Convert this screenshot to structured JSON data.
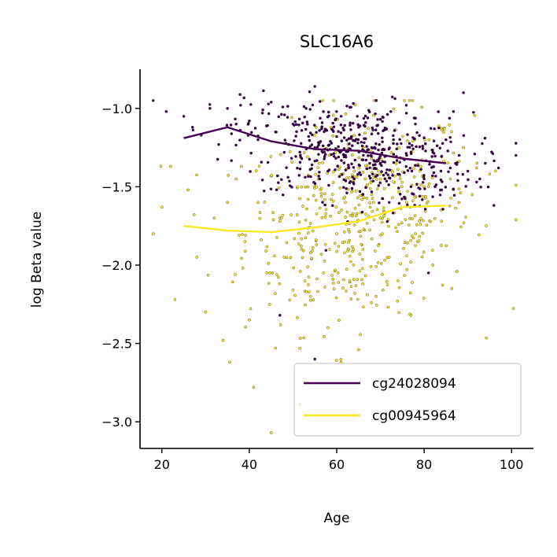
{
  "chart_data": {
    "type": "scatter",
    "title": "SLC16A6",
    "xlabel": "Age",
    "ylabel": "log Beta value",
    "xlim": [
      15,
      105
    ],
    "ylim": [
      -3.17,
      -0.75
    ],
    "xticks": [
      20,
      40,
      60,
      80,
      100
    ],
    "yticks": [
      -3.0,
      -2.5,
      -2.0,
      -1.5,
      -1.0
    ],
    "xtick_labels": [
      "20",
      "40",
      "60",
      "80",
      "100"
    ],
    "ytick_labels": [
      "−3.0",
      "−2.5",
      "−2.0",
      "−1.5",
      "−1.0"
    ],
    "grid": false,
    "legend_position": "lower-right",
    "series": [
      {
        "name": "cg24028094",
        "color": "#440154",
        "point_summary": {
          "count_approx": 480,
          "x_range": [
            18,
            101
          ],
          "y_range": [
            -2.6,
            -0.85
          ],
          "y_center_approx": -1.3
        },
        "points_sample": [
          [
            18,
            -0.95
          ],
          [
            21,
            -1.02
          ],
          [
            25,
            -1.05
          ],
          [
            27,
            -1.12
          ],
          [
            29,
            -1.17
          ],
          [
            31,
            -1.0
          ],
          [
            33,
            -1.23
          ],
          [
            35,
            -1.0
          ],
          [
            37,
            -1.1
          ],
          [
            38,
            -0.98
          ],
          [
            40,
            -1.08
          ],
          [
            42,
            -1.2
          ],
          [
            43,
            -1.03
          ],
          [
            45,
            -0.96
          ],
          [
            46,
            -1.15
          ],
          [
            48,
            -1.28
          ],
          [
            50,
            -1.1
          ],
          [
            52,
            -1.32
          ],
          [
            53,
            -1.0
          ],
          [
            55,
            -0.86
          ],
          [
            56,
            -1.22
          ],
          [
            58,
            -1.4
          ],
          [
            60,
            -1.18
          ],
          [
            61,
            -1.05
          ],
          [
            62,
            -1.3
          ],
          [
            64,
            -1.45
          ],
          [
            65,
            -1.12
          ],
          [
            66,
            -1.55
          ],
          [
            68,
            -1.25
          ],
          [
            69,
            -0.95
          ],
          [
            70,
            -1.35
          ],
          [
            72,
            -1.6
          ],
          [
            73,
            -1.2
          ],
          [
            74,
            -1.42
          ],
          [
            76,
            -1.3
          ],
          [
            77,
            -1.5
          ],
          [
            78,
            -1.1
          ],
          [
            80,
            -1.45
          ],
          [
            81,
            -2.05
          ],
          [
            82,
            -1.28
          ],
          [
            84,
            -1.52
          ],
          [
            85,
            -1.2
          ],
          [
            86,
            -1.38
          ],
          [
            88,
            -1.3
          ],
          [
            89,
            -0.9
          ],
          [
            90,
            -1.4
          ],
          [
            92,
            -1.47
          ],
          [
            94,
            -1.35
          ],
          [
            97,
            -1.38
          ],
          [
            101,
            -1.3
          ],
          [
            55,
            -2.6
          ],
          [
            47,
            -2.32
          ]
        ],
        "trend": {
          "x": [
            25,
            35,
            45,
            55,
            65,
            75,
            85
          ],
          "y": [
            -1.19,
            -1.12,
            -1.21,
            -1.26,
            -1.27,
            -1.32,
            -1.35
          ]
        }
      },
      {
        "name": "cg00945964",
        "color": "#fde725",
        "point_summary": {
          "count_approx": 480,
          "x_range": [
            18,
            101
          ],
          "y_range": [
            -3.07,
            -0.95
          ],
          "y_center_approx": -1.75
        },
        "points_sample": [
          [
            18,
            -1.8
          ],
          [
            20,
            -1.63
          ],
          [
            22,
            -1.37
          ],
          [
            23,
            -2.22
          ],
          [
            26,
            -1.52
          ],
          [
            28,
            -1.95
          ],
          [
            30,
            -2.3
          ],
          [
            32,
            -1.7
          ],
          [
            34,
            -2.48
          ],
          [
            35,
            -1.6
          ],
          [
            37,
            -1.45
          ],
          [
            39,
            -1.85
          ],
          [
            40,
            -2.35
          ],
          [
            41,
            -2.78
          ],
          [
            42,
            -1.6
          ],
          [
            44,
            -2.05
          ],
          [
            45,
            -3.07
          ],
          [
            46,
            -2.53
          ],
          [
            47,
            -1.72
          ],
          [
            48,
            -1.95
          ],
          [
            50,
            -2.16
          ],
          [
            51,
            -1.5
          ],
          [
            52,
            -1.9
          ],
          [
            54,
            -2.2
          ],
          [
            56,
            -1.35
          ],
          [
            57,
            -2.05
          ],
          [
            58,
            -2.4
          ],
          [
            60,
            -1.8
          ],
          [
            61,
            -2.62
          ],
          [
            62,
            -1.6
          ],
          [
            63,
            -2.1
          ],
          [
            64,
            -1.4
          ],
          [
            65,
            -2.54
          ],
          [
            66,
            -1.9
          ],
          [
            68,
            -1.55
          ],
          [
            69,
            -2.2
          ],
          [
            70,
            -1.7
          ],
          [
            72,
            -1.95
          ],
          [
            73,
            -1.3
          ],
          [
            74,
            -2.1
          ],
          [
            76,
            -1.6
          ],
          [
            77,
            -2.32
          ],
          [
            78,
            -1.8
          ],
          [
            80,
            -1.5
          ],
          [
            82,
            -2.0
          ],
          [
            84,
            -1.72
          ],
          [
            86,
            -1.45
          ],
          [
            88,
            -1.6
          ],
          [
            89,
            -1.25
          ],
          [
            91,
            -1.55
          ],
          [
            92,
            -1.38
          ],
          [
            95,
            -1.42
          ],
          [
            101,
            -1.49
          ]
        ],
        "trend": {
          "x": [
            25,
            35,
            45,
            55,
            65,
            75,
            85
          ],
          "y": [
            -1.75,
            -1.78,
            -1.79,
            -1.76,
            -1.72,
            -1.63,
            -1.62
          ]
        }
      }
    ]
  }
}
